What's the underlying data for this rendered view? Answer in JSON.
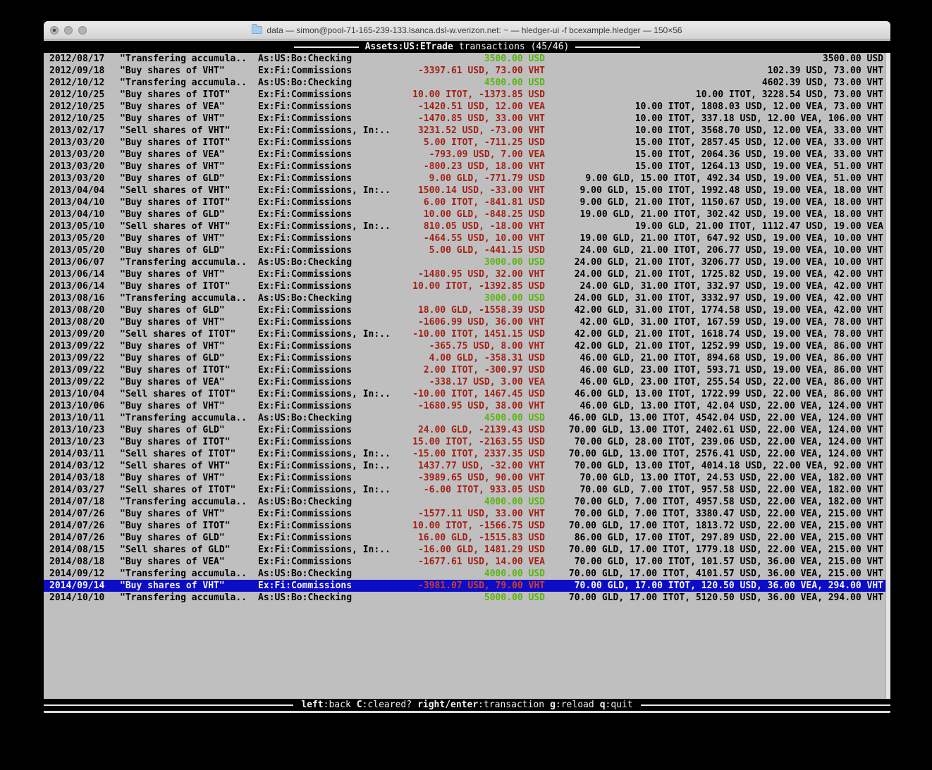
{
  "window": {
    "title": "data — simon@pool-71-165-239-133.lsanca.dsl-w.verizon.net: ~ — hledger-ui -f bcexample.hledger — 150×56"
  },
  "header": {
    "account": "Assets:US:ETrade",
    "context": "transactions (45/46)"
  },
  "transactions": [
    {
      "date": "2012/08/17",
      "description": "\"Transfering accumula..",
      "account": "As:US:Bo:Checking",
      "change": "3500.00 USD",
      "change_color": "green",
      "balance": "3500.00 USD"
    },
    {
      "date": "2012/09/18",
      "description": "\"Buy shares of VHT\"",
      "account": "Ex:Fi:Commissions",
      "change": "-3397.61 USD, 73.00 VHT",
      "change_color": "red",
      "balance": "102.39 USD, 73.00 VHT"
    },
    {
      "date": "2012/10/12",
      "description": "\"Transfering accumula..",
      "account": "As:US:Bo:Checking",
      "change": "4500.00 USD",
      "change_color": "green",
      "balance": "4602.39 USD, 73.00 VHT"
    },
    {
      "date": "2012/10/25",
      "description": "\"Buy shares of ITOT\"",
      "account": "Ex:Fi:Commissions",
      "change": "10.00 ITOT, -1373.85 USD",
      "change_color": "red",
      "balance": "10.00 ITOT, 3228.54 USD, 73.00 VHT"
    },
    {
      "date": "2012/10/25",
      "description": "\"Buy shares of VEA\"",
      "account": "Ex:Fi:Commissions",
      "change": "-1420.51 USD, 12.00 VEA",
      "change_color": "red",
      "balance": "10.00 ITOT, 1808.03 USD, 12.00 VEA, 73.00 VHT"
    },
    {
      "date": "2012/10/25",
      "description": "\"Buy shares of VHT\"",
      "account": "Ex:Fi:Commissions",
      "change": "-1470.85 USD, 33.00 VHT",
      "change_color": "red",
      "balance": "10.00 ITOT, 337.18 USD, 12.00 VEA, 106.00 VHT"
    },
    {
      "date": "2013/02/17",
      "description": "\"Sell shares of VHT\"",
      "account": "Ex:Fi:Commissions, In:..",
      "change": "3231.52 USD, -73.00 VHT",
      "change_color": "red",
      "balance": "10.00 ITOT, 3568.70 USD, 12.00 VEA, 33.00 VHT"
    },
    {
      "date": "2013/03/20",
      "description": "\"Buy shares of ITOT\"",
      "account": "Ex:Fi:Commissions",
      "change": "5.00 ITOT, -711.25 USD",
      "change_color": "red",
      "balance": "15.00 ITOT, 2857.45 USD, 12.00 VEA, 33.00 VHT"
    },
    {
      "date": "2013/03/20",
      "description": "\"Buy shares of VEA\"",
      "account": "Ex:Fi:Commissions",
      "change": "-793.09 USD, 7.00 VEA",
      "change_color": "red",
      "balance": "15.00 ITOT, 2064.36 USD, 19.00 VEA, 33.00 VHT"
    },
    {
      "date": "2013/03/20",
      "description": "\"Buy shares of VHT\"",
      "account": "Ex:Fi:Commissions",
      "change": "-800.23 USD, 18.00 VHT",
      "change_color": "red",
      "balance": "15.00 ITOT, 1264.13 USD, 19.00 VEA, 51.00 VHT"
    },
    {
      "date": "2013/03/20",
      "description": "\"Buy shares of GLD\"",
      "account": "Ex:Fi:Commissions",
      "change": "9.00 GLD, -771.79 USD",
      "change_color": "red",
      "balance": "9.00 GLD, 15.00 ITOT, 492.34 USD, 19.00 VEA, 51.00 VHT"
    },
    {
      "date": "2013/04/04",
      "description": "\"Sell shares of VHT\"",
      "account": "Ex:Fi:Commissions, In:..",
      "change": "1500.14 USD, -33.00 VHT",
      "change_color": "red",
      "balance": "9.00 GLD, 15.00 ITOT, 1992.48 USD, 19.00 VEA, 18.00 VHT"
    },
    {
      "date": "2013/04/10",
      "description": "\"Buy shares of ITOT\"",
      "account": "Ex:Fi:Commissions",
      "change": "6.00 ITOT, -841.81 USD",
      "change_color": "red",
      "balance": "9.00 GLD, 21.00 ITOT, 1150.67 USD, 19.00 VEA, 18.00 VHT"
    },
    {
      "date": "2013/04/10",
      "description": "\"Buy shares of GLD\"",
      "account": "Ex:Fi:Commissions",
      "change": "10.00 GLD, -848.25 USD",
      "change_color": "red",
      "balance": "19.00 GLD, 21.00 ITOT, 302.42 USD, 19.00 VEA, 18.00 VHT"
    },
    {
      "date": "2013/05/10",
      "description": "\"Sell shares of VHT\"",
      "account": "Ex:Fi:Commissions, In:..",
      "change": "810.05 USD, -18.00 VHT",
      "change_color": "red",
      "balance": "19.00 GLD, 21.00 ITOT, 1112.47 USD, 19.00 VEA"
    },
    {
      "date": "2013/05/20",
      "description": "\"Buy shares of VHT\"",
      "account": "Ex:Fi:Commissions",
      "change": "-464.55 USD, 10.00 VHT",
      "change_color": "red",
      "balance": "19.00 GLD, 21.00 ITOT, 647.92 USD, 19.00 VEA, 10.00 VHT"
    },
    {
      "date": "2013/05/20",
      "description": "\"Buy shares of GLD\"",
      "account": "Ex:Fi:Commissions",
      "change": "5.00 GLD, -441.15 USD",
      "change_color": "red",
      "balance": "24.00 GLD, 21.00 ITOT, 206.77 USD, 19.00 VEA, 10.00 VHT"
    },
    {
      "date": "2013/06/07",
      "description": "\"Transfering accumula..",
      "account": "As:US:Bo:Checking",
      "change": "3000.00 USD",
      "change_color": "green",
      "balance": "24.00 GLD, 21.00 ITOT, 3206.77 USD, 19.00 VEA, 10.00 VHT"
    },
    {
      "date": "2013/06/14",
      "description": "\"Buy shares of VHT\"",
      "account": "Ex:Fi:Commissions",
      "change": "-1480.95 USD, 32.00 VHT",
      "change_color": "red",
      "balance": "24.00 GLD, 21.00 ITOT, 1725.82 USD, 19.00 VEA, 42.00 VHT"
    },
    {
      "date": "2013/06/14",
      "description": "\"Buy shares of ITOT\"",
      "account": "Ex:Fi:Commissions",
      "change": "10.00 ITOT, -1392.85 USD",
      "change_color": "red",
      "balance": "24.00 GLD, 31.00 ITOT, 332.97 USD, 19.00 VEA, 42.00 VHT"
    },
    {
      "date": "2013/08/16",
      "description": "\"Transfering accumula..",
      "account": "As:US:Bo:Checking",
      "change": "3000.00 USD",
      "change_color": "green",
      "balance": "24.00 GLD, 31.00 ITOT, 3332.97 USD, 19.00 VEA, 42.00 VHT"
    },
    {
      "date": "2013/08/20",
      "description": "\"Buy shares of GLD\"",
      "account": "Ex:Fi:Commissions",
      "change": "18.00 GLD, -1558.39 USD",
      "change_color": "red",
      "balance": "42.00 GLD, 31.00 ITOT, 1774.58 USD, 19.00 VEA, 42.00 VHT"
    },
    {
      "date": "2013/08/20",
      "description": "\"Buy shares of VHT\"",
      "account": "Ex:Fi:Commissions",
      "change": "-1606.99 USD, 36.00 VHT",
      "change_color": "red",
      "balance": "42.00 GLD, 31.00 ITOT, 167.59 USD, 19.00 VEA, 78.00 VHT"
    },
    {
      "date": "2013/09/20",
      "description": "\"Sell shares of ITOT\"",
      "account": "Ex:Fi:Commissions, In:..",
      "change": "-10.00 ITOT, 1451.15 USD",
      "change_color": "red",
      "balance": "42.00 GLD, 21.00 ITOT, 1618.74 USD, 19.00 VEA, 78.00 VHT"
    },
    {
      "date": "2013/09/22",
      "description": "\"Buy shares of VHT\"",
      "account": "Ex:Fi:Commissions",
      "change": "-365.75 USD, 8.00 VHT",
      "change_color": "red",
      "balance": "42.00 GLD, 21.00 ITOT, 1252.99 USD, 19.00 VEA, 86.00 VHT"
    },
    {
      "date": "2013/09/22",
      "description": "\"Buy shares of GLD\"",
      "account": "Ex:Fi:Commissions",
      "change": "4.00 GLD, -358.31 USD",
      "change_color": "red",
      "balance": "46.00 GLD, 21.00 ITOT, 894.68 USD, 19.00 VEA, 86.00 VHT"
    },
    {
      "date": "2013/09/22",
      "description": "\"Buy shares of ITOT\"",
      "account": "Ex:Fi:Commissions",
      "change": "2.00 ITOT, -300.97 USD",
      "change_color": "red",
      "balance": "46.00 GLD, 23.00 ITOT, 593.71 USD, 19.00 VEA, 86.00 VHT"
    },
    {
      "date": "2013/09/22",
      "description": "\"Buy shares of VEA\"",
      "account": "Ex:Fi:Commissions",
      "change": "-338.17 USD, 3.00 VEA",
      "change_color": "red",
      "balance": "46.00 GLD, 23.00 ITOT, 255.54 USD, 22.00 VEA, 86.00 VHT"
    },
    {
      "date": "2013/10/04",
      "description": "\"Sell shares of ITOT\"",
      "account": "Ex:Fi:Commissions, In:..",
      "change": "-10.00 ITOT, 1467.45 USD",
      "change_color": "red",
      "balance": "46.00 GLD, 13.00 ITOT, 1722.99 USD, 22.00 VEA, 86.00 VHT"
    },
    {
      "date": "2013/10/06",
      "description": "\"Buy shares of VHT\"",
      "account": "Ex:Fi:Commissions",
      "change": "-1680.95 USD, 38.00 VHT",
      "change_color": "red",
      "balance": "46.00 GLD, 13.00 ITOT, 42.04 USD, 22.00 VEA, 124.00 VHT"
    },
    {
      "date": "2013/10/11",
      "description": "\"Transfering accumula..",
      "account": "As:US:Bo:Checking",
      "change": "4500.00 USD",
      "change_color": "green",
      "balance": "46.00 GLD, 13.00 ITOT, 4542.04 USD, 22.00 VEA, 124.00 VHT"
    },
    {
      "date": "2013/10/23",
      "description": "\"Buy shares of GLD\"",
      "account": "Ex:Fi:Commissions",
      "change": "24.00 GLD, -2139.43 USD",
      "change_color": "red",
      "balance": "70.00 GLD, 13.00 ITOT, 2402.61 USD, 22.00 VEA, 124.00 VHT"
    },
    {
      "date": "2013/10/23",
      "description": "\"Buy shares of ITOT\"",
      "account": "Ex:Fi:Commissions",
      "change": "15.00 ITOT, -2163.55 USD",
      "change_color": "red",
      "balance": "70.00 GLD, 28.00 ITOT, 239.06 USD, 22.00 VEA, 124.00 VHT"
    },
    {
      "date": "2014/03/11",
      "description": "\"Sell shares of ITOT\"",
      "account": "Ex:Fi:Commissions, In:..",
      "change": "-15.00 ITOT, 2337.35 USD",
      "change_color": "red",
      "balance": "70.00 GLD, 13.00 ITOT, 2576.41 USD, 22.00 VEA, 124.00 VHT"
    },
    {
      "date": "2014/03/12",
      "description": "\"Sell shares of VHT\"",
      "account": "Ex:Fi:Commissions, In:..",
      "change": "1437.77 USD, -32.00 VHT",
      "change_color": "red",
      "balance": "70.00 GLD, 13.00 ITOT, 4014.18 USD, 22.00 VEA, 92.00 VHT"
    },
    {
      "date": "2014/03/18",
      "description": "\"Buy shares of VHT\"",
      "account": "Ex:Fi:Commissions",
      "change": "-3989.65 USD, 90.00 VHT",
      "change_color": "red",
      "balance": "70.00 GLD, 13.00 ITOT, 24.53 USD, 22.00 VEA, 182.00 VHT"
    },
    {
      "date": "2014/03/27",
      "description": "\"Sell shares of ITOT\"",
      "account": "Ex:Fi:Commissions, In:..",
      "change": "-6.00 ITOT, 933.05 USD",
      "change_color": "red",
      "balance": "70.00 GLD, 7.00 ITOT, 957.58 USD, 22.00 VEA, 182.00 VHT"
    },
    {
      "date": "2014/07/18",
      "description": "\"Transfering accumula..",
      "account": "As:US:Bo:Checking",
      "change": "4000.00 USD",
      "change_color": "green",
      "balance": "70.00 GLD, 7.00 ITOT, 4957.58 USD, 22.00 VEA, 182.00 VHT"
    },
    {
      "date": "2014/07/26",
      "description": "\"Buy shares of VHT\"",
      "account": "Ex:Fi:Commissions",
      "change": "-1577.11 USD, 33.00 VHT",
      "change_color": "red",
      "balance": "70.00 GLD, 7.00 ITOT, 3380.47 USD, 22.00 VEA, 215.00 VHT"
    },
    {
      "date": "2014/07/26",
      "description": "\"Buy shares of ITOT\"",
      "account": "Ex:Fi:Commissions",
      "change": "10.00 ITOT, -1566.75 USD",
      "change_color": "red",
      "balance": "70.00 GLD, 17.00 ITOT, 1813.72 USD, 22.00 VEA, 215.00 VHT"
    },
    {
      "date": "2014/07/26",
      "description": "\"Buy shares of GLD\"",
      "account": "Ex:Fi:Commissions",
      "change": "16.00 GLD, -1515.83 USD",
      "change_color": "red",
      "balance": "86.00 GLD, 17.00 ITOT, 297.89 USD, 22.00 VEA, 215.00 VHT"
    },
    {
      "date": "2014/08/15",
      "description": "\"Sell shares of GLD\"",
      "account": "Ex:Fi:Commissions, In:..",
      "change": "-16.00 GLD, 1481.29 USD",
      "change_color": "red",
      "balance": "70.00 GLD, 17.00 ITOT, 1779.18 USD, 22.00 VEA, 215.00 VHT"
    },
    {
      "date": "2014/08/18",
      "description": "\"Buy shares of VEA\"",
      "account": "Ex:Fi:Commissions",
      "change": "-1677.61 USD, 14.00 VEA",
      "change_color": "red",
      "balance": "70.00 GLD, 17.00 ITOT, 101.57 USD, 36.00 VEA, 215.00 VHT"
    },
    {
      "date": "2014/09/12",
      "description": "\"Transfering accumula..",
      "account": "As:US:Bo:Checking",
      "change": "4000.00 USD",
      "change_color": "green",
      "balance": "70.00 GLD, 17.00 ITOT, 4101.57 USD, 36.00 VEA, 215.00 VHT"
    },
    {
      "date": "2014/09/14",
      "description": "\"Buy shares of VHT\"",
      "account": "Ex:Fi:Commissions",
      "change": "-3981.07 USD, 79.00 VHT",
      "change_color": "red",
      "balance": "70.00 GLD, 17.00 ITOT, 120.50 USD, 36.00 VEA, 294.00 VHT",
      "selected": true
    },
    {
      "date": "2014/10/10",
      "description": "\"Transfering accumula..",
      "account": "As:US:Bo:Checking",
      "change": "5000.00 USD",
      "change_color": "green",
      "balance": "70.00 GLD, 17.00 ITOT, 5120.50 USD, 36.00 VEA, 294.00 VHT"
    }
  ],
  "footer": {
    "hints": [
      {
        "key": "left",
        "desc": ":back"
      },
      {
        "key": "C",
        "desc": ":cleared?"
      },
      {
        "key": "right/enter",
        "desc": ":transaction"
      },
      {
        "key": "g",
        "desc": ":reload"
      },
      {
        "key": "q",
        "desc": ":quit"
      }
    ]
  },
  "colors": {
    "positive": "#5ab50e",
    "negative": "#a42016",
    "selection_bg": "#0d0dc6",
    "terminal_bg": "#bfbfbf"
  }
}
